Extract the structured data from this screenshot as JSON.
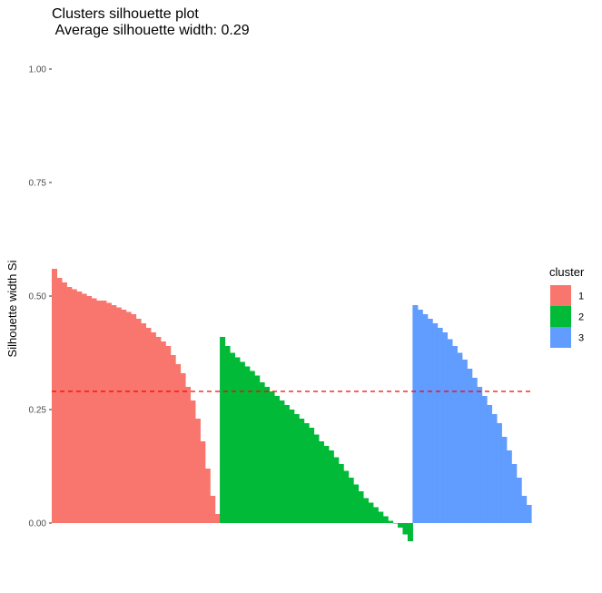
{
  "chart_data": {
    "type": "bar",
    "title_lines": [
      "Clusters silhouette plot",
      " Average silhouette width: 0.29"
    ],
    "xlabel": "",
    "ylabel": "Silhouette width Si",
    "ylim": [
      -0.04,
      1.0
    ],
    "y_ticks": [
      {
        "value": 0.0,
        "label": "0.00"
      },
      {
        "value": 0.25,
        "label": "0.25"
      },
      {
        "value": 0.5,
        "label": "0.50"
      },
      {
        "value": 0.75,
        "label": "0.75"
      },
      {
        "value": 1.0,
        "label": "1.00"
      }
    ],
    "grid": false,
    "reference_line": {
      "value": 0.29,
      "color": "#ff0000",
      "style": "dashed"
    },
    "legend": {
      "title": "cluster",
      "placement": "right"
    },
    "series": [
      {
        "name": "1",
        "color": "#f8766d",
        "values": [
          0.56,
          0.54,
          0.53,
          0.52,
          0.515,
          0.51,
          0.505,
          0.5,
          0.495,
          0.49,
          0.49,
          0.485,
          0.48,
          0.475,
          0.47,
          0.465,
          0.46,
          0.45,
          0.44,
          0.43,
          0.42,
          0.41,
          0.4,
          0.39,
          0.37,
          0.35,
          0.33,
          0.3,
          0.27,
          0.23,
          0.18,
          0.12,
          0.06,
          0.02
        ]
      },
      {
        "name": "2",
        "color": "#00ba38",
        "values": [
          0.41,
          0.39,
          0.375,
          0.365,
          0.355,
          0.345,
          0.335,
          0.325,
          0.31,
          0.3,
          0.29,
          0.28,
          0.27,
          0.26,
          0.25,
          0.24,
          0.23,
          0.22,
          0.21,
          0.195,
          0.18,
          0.17,
          0.16,
          0.145,
          0.13,
          0.115,
          0.1,
          0.085,
          0.07,
          0.055,
          0.045,
          0.035,
          0.025,
          0.015,
          0.005,
          0.0,
          -0.01,
          -0.025,
          -0.04
        ]
      },
      {
        "name": "3",
        "color": "#619cff",
        "values": [
          0.48,
          0.47,
          0.46,
          0.45,
          0.44,
          0.43,
          0.42,
          0.405,
          0.39,
          0.375,
          0.36,
          0.34,
          0.32,
          0.3,
          0.28,
          0.26,
          0.24,
          0.22,
          0.19,
          0.16,
          0.13,
          0.1,
          0.06,
          0.04
        ]
      }
    ]
  }
}
